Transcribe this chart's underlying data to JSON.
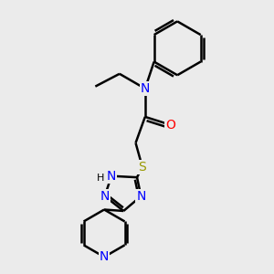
{
  "bg_color": "#ebebeb",
  "bond_color": "#000000",
  "bond_width": 1.8,
  "atom_colors": {
    "N": "#0000ff",
    "O": "#ff0000",
    "S": "#999900",
    "C": "#000000",
    "H": "#000000"
  },
  "font_size_atom": 10,
  "font_size_small": 8,
  "figsize": [
    3.0,
    3.0
  ],
  "dpi": 100
}
